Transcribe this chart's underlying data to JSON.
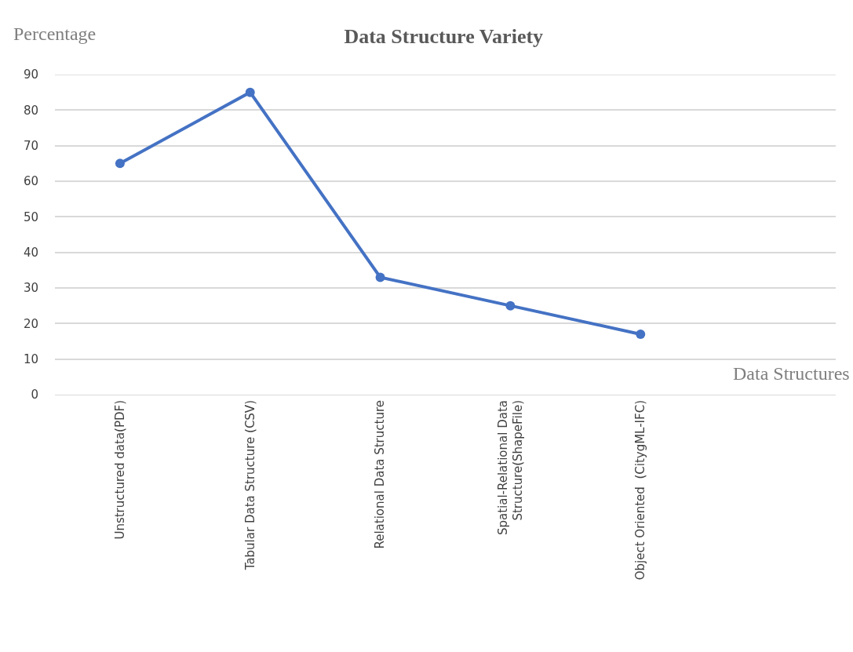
{
  "chart_data": {
    "type": "line",
    "title": "Data Structure Variety",
    "xlabel": "Data Structures",
    "ylabel": "Percentage",
    "categories": [
      "Unstructured data(PDF)",
      "Tabular Data Structure (CSV)",
      "Relational Data Structure",
      "Spatial-Relational Data Structure(ShapeFile)",
      "Object Oriented  (CitygML-IFC)",
      null
    ],
    "series": [
      {
        "color": "#4472c4",
        "values": [
          65,
          85,
          33,
          25,
          17,
          null
        ]
      }
    ],
    "ylim": [
      0,
      90
    ],
    "yticks": [
      0,
      10,
      20,
      30,
      40,
      50,
      60,
      70,
      80,
      90
    ],
    "grid": "y",
    "marker": "circle",
    "line_style": "solid"
  }
}
